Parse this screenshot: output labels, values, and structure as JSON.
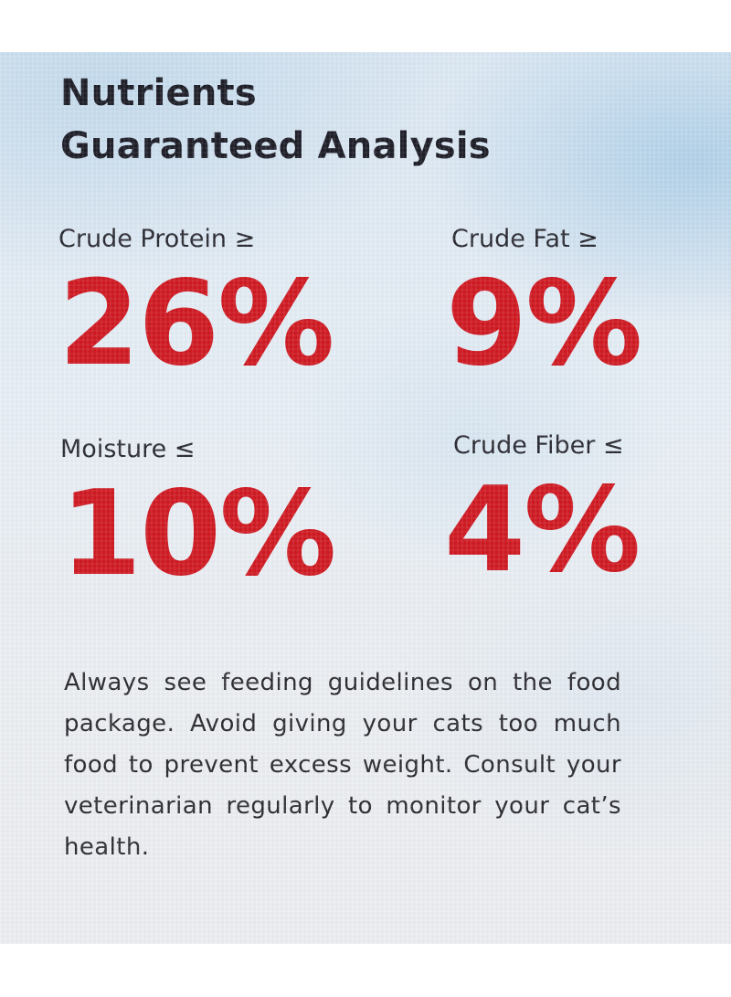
{
  "heading": {
    "line1": "Nutrients",
    "line2": "Guaranteed Analysis"
  },
  "nutrients": [
    {
      "label": "Crude Protein ≥",
      "value": "26%"
    },
    {
      "label": "Crude Fat ≥",
      "value": "9%"
    },
    {
      "label": "Moisture ≤",
      "value": "10%"
    },
    {
      "label": "Crude Fiber ≤",
      "value": "4%"
    }
  ],
  "note": "Always see feeding guidelines on the food package. Avoid giving your cats too much food to prevent excess weight. Consult your veterinarian regularly to monitor your cat’s health.",
  "colors": {
    "value_red": "#d01a23",
    "heading_dark": "#1e1e28",
    "background_sky": "#dce9f4"
  }
}
